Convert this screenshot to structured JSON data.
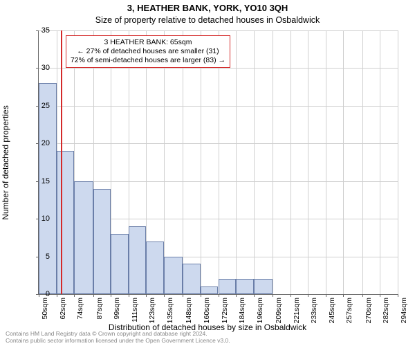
{
  "title_main": "3, HEATHER BANK, YORK, YO10 3QH",
  "title_sub": "Size of property relative to detached houses in Osbaldwick",
  "y_axis_label": "Number of detached properties",
  "x_axis_label": "Distribution of detached houses by size in Osbaldwick",
  "annot": {
    "line1": "3 HEATHER BANK: 65sqm",
    "line2": "← 27% of detached houses are smaller (31)",
    "line3": "72% of semi-detached houses are larger (83) →"
  },
  "footer": {
    "line1": "Contains HM Land Registry data © Crown copyright and database right 2024.",
    "line2": "Contains public sector information licensed under the Open Government Licence v3.0."
  },
  "chart": {
    "type": "histogram",
    "ylim": [
      0,
      35
    ],
    "ytick_step": 5,
    "xticks": [
      50,
      62,
      74,
      87,
      99,
      111,
      123,
      135,
      148,
      160,
      172,
      184,
      196,
      209,
      221,
      233,
      245,
      257,
      270,
      282,
      294
    ],
    "xtick_suffix": "sqm",
    "values": [
      28,
      19,
      15,
      14,
      8,
      9,
      7,
      5,
      4,
      1,
      2,
      2,
      2,
      0,
      0,
      0,
      0,
      0,
      0,
      0
    ],
    "bar_color": "#cdd9ee",
    "bar_border": "#6a7ea8",
    "grid_color": "#cfcfcf",
    "background_color": "#ffffff",
    "ref_line_value": 65,
    "ref_line_color": "#d42a2a",
    "title_fontsize": 13,
    "label_fontsize": 12,
    "tick_fontsize": 11
  }
}
